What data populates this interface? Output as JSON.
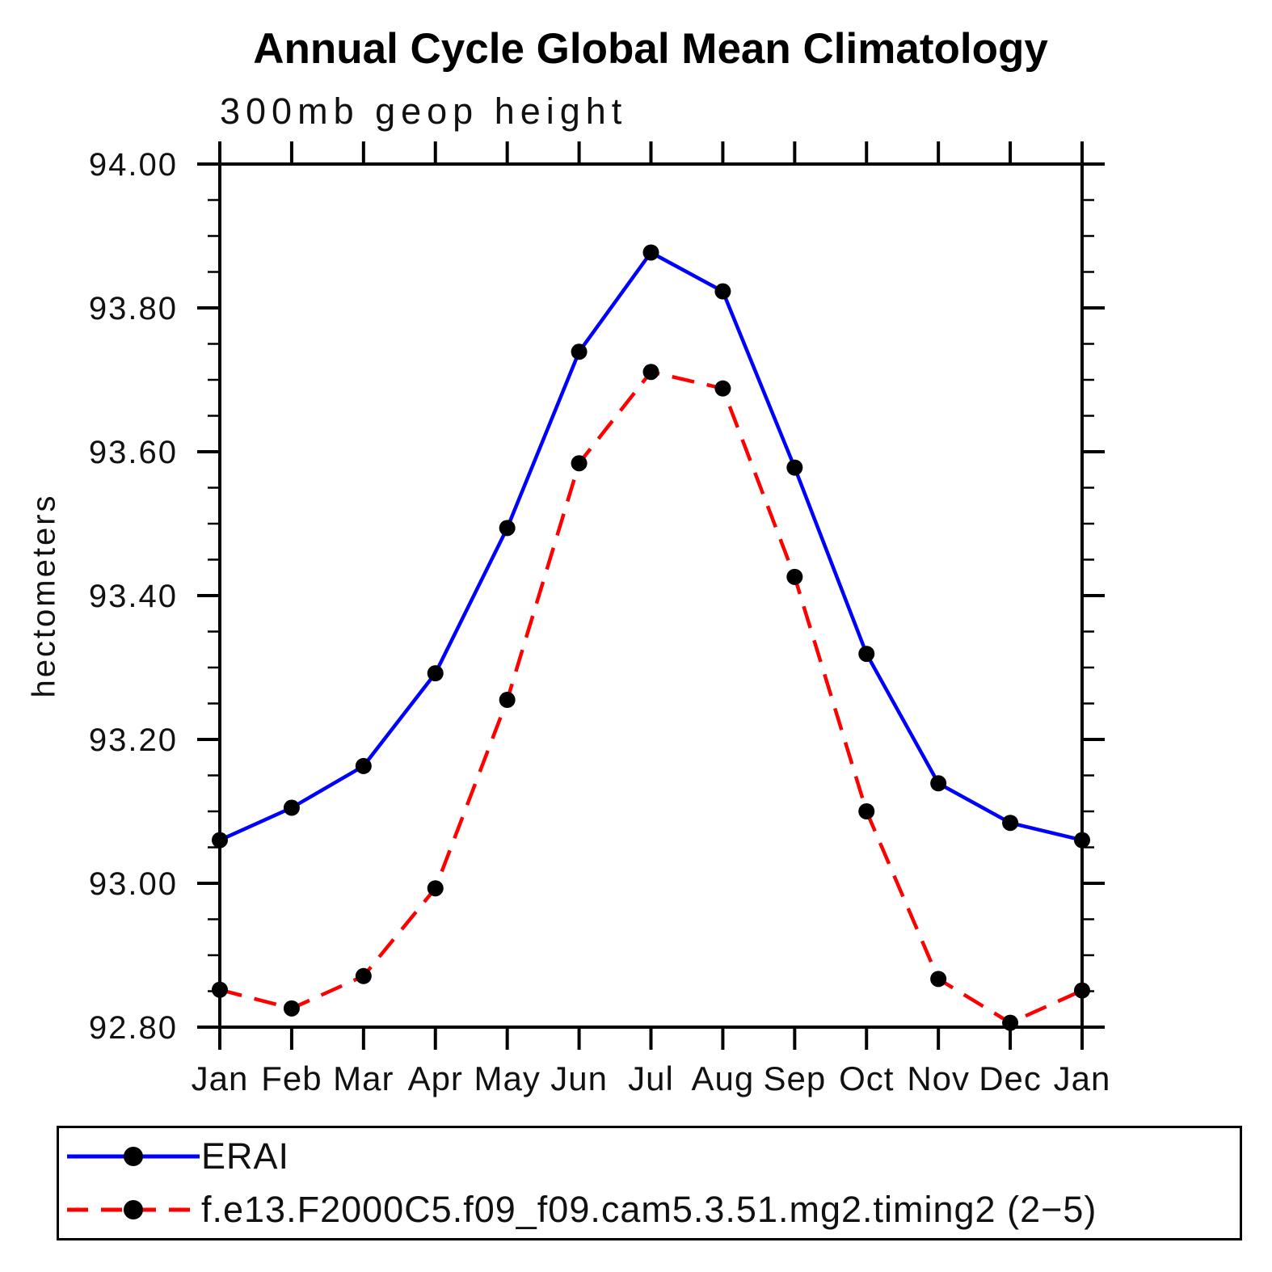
{
  "header": {
    "title": "Annual Cycle Global Mean Climatology",
    "subtitle": "300mb geop height"
  },
  "axes": {
    "y_label": "hectometers",
    "y_tick_labels": [
      "94.00",
      "93.80",
      "93.60",
      "93.40",
      "93.20",
      "93.00",
      "92.80"
    ],
    "x_tick_labels": [
      "Jan",
      "Feb",
      "Mar",
      "Apr",
      "May",
      "Jun",
      "Jul",
      "Aug",
      "Sep",
      "Oct",
      "Nov",
      "Dec",
      "Jan"
    ]
  },
  "legend": {
    "items": [
      {
        "label": "ERAI",
        "color": "#0000ff",
        "line_style": "solid",
        "marker": "circle"
      },
      {
        "label": "f.e13.F2000C5.f09_f09.cam5.3.51.mg2.timing2 (2−5)",
        "color": "#ff0000",
        "line_style": "dashed",
        "marker": "circle"
      }
    ]
  },
  "chart_data": {
    "type": "line",
    "title": "Annual Cycle Global Mean Climatology",
    "subtitle": "300mb geop height",
    "xlabel": "",
    "ylabel": "hectometers",
    "categories": [
      "Jan",
      "Feb",
      "Mar",
      "Apr",
      "May",
      "Jun",
      "Jul",
      "Aug",
      "Sep",
      "Oct",
      "Nov",
      "Dec",
      "Jan"
    ],
    "ylim": [
      92.8,
      94.0
    ],
    "y_major_tick_step": 0.2,
    "y_minor_tick_step": 0.05,
    "grid": false,
    "legend_position": "bottom",
    "marker_color": "#000000",
    "series": [
      {
        "name": "ERAI",
        "color": "#0000ff",
        "line_style": "solid",
        "marker": "circle",
        "values": [
          93.06,
          93.105,
          93.163,
          93.292,
          93.494,
          93.739,
          93.877,
          93.823,
          93.578,
          93.319,
          93.139,
          93.084,
          93.06
        ]
      },
      {
        "name": "f.e13.F2000C5.f09_f09.cam5.3.51.mg2.timing2 (2−5)",
        "color": "#ff0000",
        "line_style": "dashed",
        "marker": "circle",
        "values": [
          92.852,
          92.826,
          92.871,
          92.993,
          93.255,
          93.584,
          93.711,
          93.688,
          93.426,
          93.1,
          92.867,
          92.806,
          92.851
        ]
      }
    ]
  }
}
